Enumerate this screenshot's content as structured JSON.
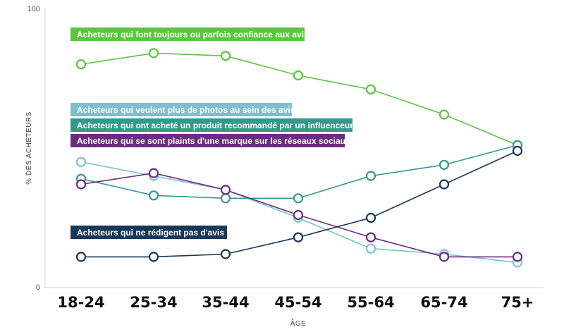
{
  "chart_data": {
    "type": "line",
    "categories": [
      "18-24",
      "25-34",
      "35-44",
      "45-54",
      "55-64",
      "65-74",
      "75+"
    ],
    "xlabel": "ÂGE",
    "ylabel": "% DES ACHETEURS",
    "ylim": [
      0,
      100
    ],
    "yticks": [
      "0",
      "100"
    ],
    "grid": false,
    "legend_placement": "inline-labels",
    "series": [
      {
        "name": "Acheteurs qui font toujours ou parfois confiance aux avis",
        "color": "#5bc540",
        "values": [
          80,
          84,
          83,
          76,
          71,
          62,
          51
        ]
      },
      {
        "name": "Acheteurs qui veulent plus de photos au sein des avis",
        "color": "#7cc0cf",
        "values": [
          45,
          40,
          35,
          25,
          14,
          12,
          9
        ]
      },
      {
        "name": "Acheteurs qui ont acheté un produit recommandé par un influenceur",
        "color": "#36988a",
        "values": [
          39,
          33,
          32,
          32,
          40,
          44,
          51
        ]
      },
      {
        "name": "Acheteurs qui se sont plaints d'une marque sur les réseaux sociaux",
        "color": "#6b2d80",
        "values": [
          37,
          41,
          35,
          26,
          18,
          11,
          11
        ]
      },
      {
        "name": "Acheteurs qui ne rédigent pas d'avis",
        "color": "#17385a",
        "values": [
          11,
          11,
          12,
          18,
          25,
          37,
          49
        ]
      }
    ]
  }
}
